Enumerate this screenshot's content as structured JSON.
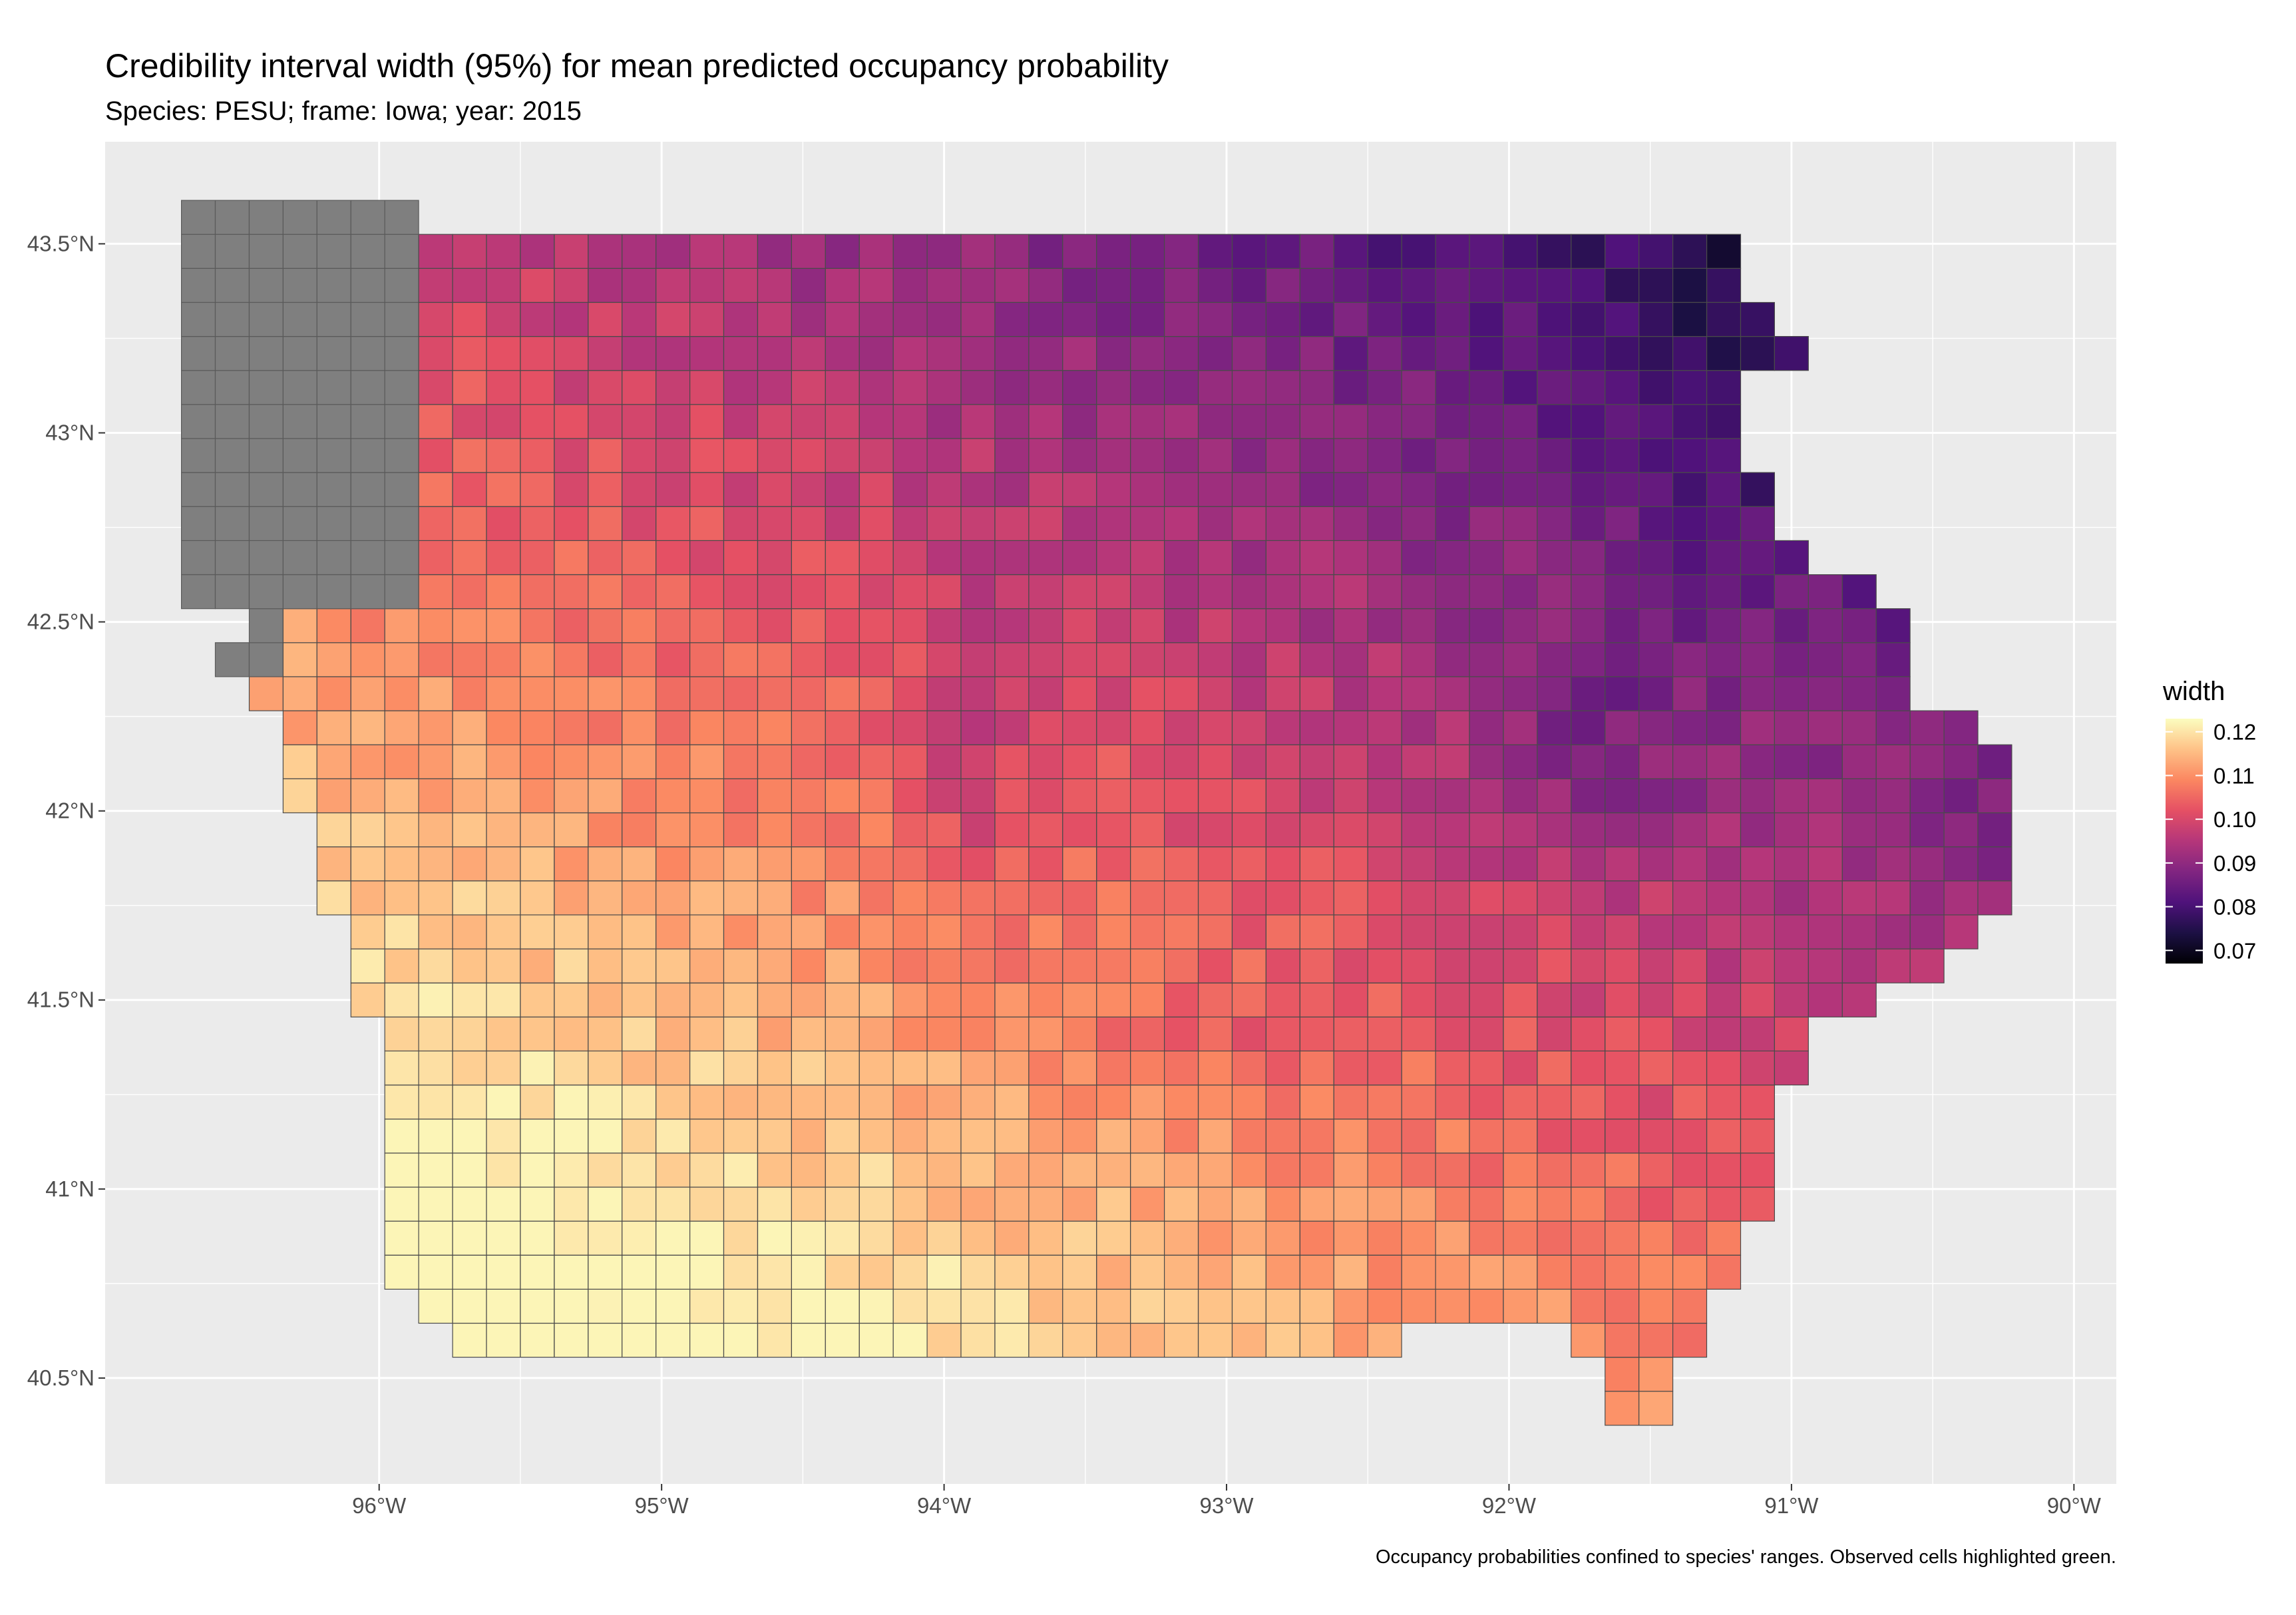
{
  "title": "Credibility interval width (95%) for mean predicted occupancy probability",
  "subtitle": "Species: PESU; frame: Iowa; year: 2015",
  "caption": "Occupancy probabilities confined to species' ranges. Observed cells highlighted green.",
  "legend": {
    "title": "width",
    "ticks": [
      "0.12",
      "0.11",
      "0.10",
      "0.09",
      "0.08",
      "0.07"
    ],
    "tick_values": [
      0.12,
      0.11,
      0.1,
      0.09,
      0.08,
      0.07
    ],
    "range": [
      0.067,
      0.123
    ],
    "palette": "magma"
  },
  "x_axis": {
    "ticks": [
      "96°W",
      "95°W",
      "94°W",
      "93°W",
      "92°W",
      "91°W",
      "90°W"
    ],
    "tick_values": [
      -96,
      -95,
      -94,
      -93,
      -92,
      -91,
      -90
    ]
  },
  "y_axis": {
    "ticks": [
      "43.5°N",
      "43°N",
      "42.5°N",
      "42°N",
      "41.5°N",
      "41°N",
      "40.5°N"
    ],
    "tick_values": [
      43.5,
      43.0,
      42.5,
      42.0,
      41.5,
      41.0,
      40.5
    ]
  },
  "map": {
    "frame": "Iowa",
    "xlim": [
      -96.97,
      -89.85
    ],
    "ylim": [
      40.22,
      43.77
    ],
    "out_of_range_color": "#7f7f7f",
    "panel_background": "#ebebeb",
    "observed_highlight_color": "#00ff66"
  }
}
